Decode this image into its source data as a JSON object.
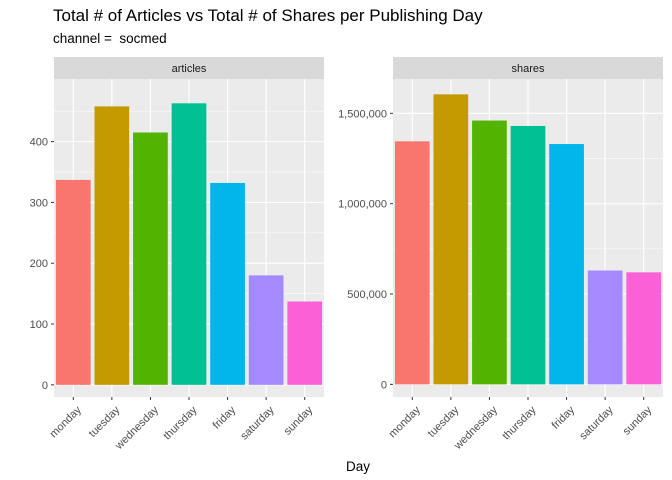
{
  "title": "Total # of Articles vs Total # of Shares per Publishing Day",
  "subtitle": "channel =  socmed",
  "xlabel": "Day",
  "colors": [
    "#F8766D",
    "#C49A00",
    "#53B400",
    "#00C094",
    "#00B6EB",
    "#A58AFF",
    "#FB61D7"
  ],
  "chart_data": {
    "type": "bar",
    "categories": [
      "monday",
      "tuesday",
      "wednesday",
      "thursday",
      "friday",
      "saturday",
      "sunday"
    ],
    "facets": [
      {
        "name": "articles",
        "values": [
          337,
          458,
          415,
          463,
          332,
          180,
          137
        ],
        "ylim": [
          -20,
          503
        ],
        "yticks": [
          0,
          100,
          200,
          300,
          400
        ],
        "ytick_labels": [
          "0",
          "100",
          "200",
          "300",
          "400"
        ]
      },
      {
        "name": "shares",
        "values": [
          1345000,
          1605000,
          1460000,
          1430000,
          1330000,
          630000,
          620000
        ],
        "ylim": [
          -70000,
          1690000
        ],
        "yticks": [
          0,
          500000,
          1000000,
          1500000
        ],
        "ytick_labels": [
          "0",
          "500,000",
          "1,000,000",
          "1,500,000"
        ]
      }
    ],
    "xlabel": "Day",
    "grid": true,
    "legend": "none"
  }
}
